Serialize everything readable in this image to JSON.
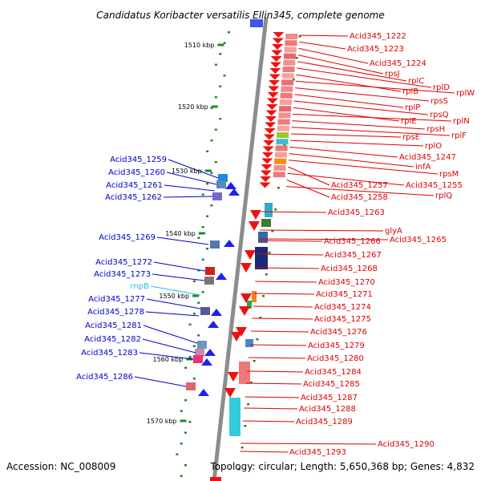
{
  "title": "Candidatus Koribacter versatilis Ellin345, complete genome",
  "accession": "Accession: NC_008009",
  "topology": "Topology: circular; Length: 5,650,368 bp; Genes: 4,832",
  "ruler_labels": [
    "1510 kbp",
    "1520 kbp",
    "1530 kbp",
    "1540 kbp",
    "1550 kbp",
    "1560 kbp",
    "1570 kbp"
  ],
  "colors": {
    "left_label": "#0000cc",
    "right_label": "#dd0000",
    "rna_label": "#22bbdd",
    "backbone": "#8c8c8c",
    "tick": "#228822"
  },
  "left_genes": [
    "Acid345_1259",
    "Acid345_1260",
    "Acid345_1261",
    "Acid345_1262",
    "Acid345_1269",
    "Acid345_1272",
    "Acid345_1273",
    "rnpB",
    "Acid345_1277",
    "Acid345_1278",
    "Acid345_1281",
    "Acid345_1282",
    "Acid345_1283",
    "Acid345_1286"
  ],
  "right_genes": [
    "Acid345_1222",
    "Acid345_1223",
    "Acid345_1224",
    "rpsJ",
    "rplC",
    "rplD",
    "rplB",
    "rplW",
    "rpsS",
    "rplP",
    "rpsQ",
    "rplE",
    "rplN",
    "rpsH",
    "rplF",
    "rpsE",
    "rplO",
    "Acid345_1247",
    "infA",
    "rpsM",
    "Acid345_1257",
    "Acid345_1255",
    "Acid345_1258",
    "rplQ",
    "Acid345_1263",
    "glyA",
    "Acid345_1266",
    "Acid345_1265",
    "Acid345_1267",
    "Acid345_1268",
    "Acid345_1270",
    "Acid345_1271",
    "Acid345_1274",
    "Acid345_1275",
    "Acid345_1276",
    "Acid345_1279",
    "Acid345_1280",
    "Acid345_1284",
    "Acid345_1285",
    "Acid345_1287",
    "Acid345_1288",
    "Acid345_1289",
    "Acid345_1290",
    "Acid345_1293"
  ]
}
